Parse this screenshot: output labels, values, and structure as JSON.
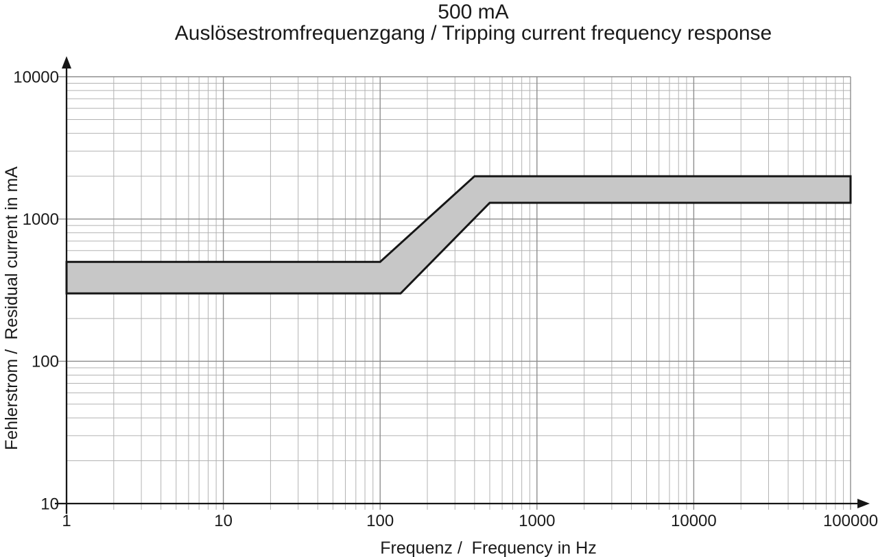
{
  "header": {
    "title": "500 mA",
    "subtitle": "Auslösestromfrequenzgang / Tripping current frequency response"
  },
  "chart_data": {
    "type": "area",
    "title": "500 mA",
    "subtitle": "Auslösestromfrequenzgang / Tripping current frequency response",
    "xlabel": "Frequenz /  Frequency in Hz",
    "ylabel": "Fehlerstrom /  Residual current in mA",
    "x_scale": "log",
    "y_scale": "log",
    "xlim": [
      1,
      100000
    ],
    "ylim": [
      10,
      10000
    ],
    "x_tick_labels": [
      "1",
      "10",
      "100",
      "1000",
      "10000",
      "100000"
    ],
    "y_tick_labels": [
      "10",
      "100",
      "1000",
      "10000"
    ],
    "grid": {
      "major": true,
      "minor": true,
      "style": "full log-log grid"
    },
    "legend": "none",
    "series": [
      {
        "name": "tripping-current-band",
        "type": "band",
        "upper": {
          "x": [
            1,
            100,
            400,
            100000
          ],
          "y": [
            500,
            500,
            2000,
            2000
          ]
        },
        "lower": {
          "x": [
            1,
            135,
            500,
            100000
          ],
          "y": [
            300,
            300,
            1300,
            1300
          ]
        }
      }
    ]
  },
  "colors": {
    "text": "#1a1a1a",
    "axis": "#161616",
    "grid_minor": "#b2b2b2",
    "grid_major": "#8e8e8e",
    "band_fill": "#c7c7c7",
    "band_stroke": "#161616",
    "background": "#ffffff"
  }
}
